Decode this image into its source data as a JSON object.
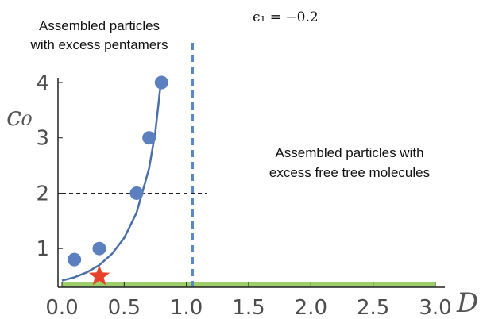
{
  "chart_data": {
    "type": "scatter",
    "title": "",
    "parameter_label": "ϵ₁ = −0.2",
    "xlabel": "D",
    "ylabel": "c₀",
    "xlim": [
      0.0,
      3.0
    ],
    "ylim": [
      0.3,
      4.0
    ],
    "x_ticks": [
      "0.0",
      "0.5",
      "1.0",
      "1.5",
      "2.0",
      "2.5",
      "3.0"
    ],
    "y_ticks": [
      "1",
      "2",
      "3",
      "4"
    ],
    "series": [
      {
        "color": "#5b7fbf",
        "points": [
          {
            "x": 0.1,
            "y": 0.8
          },
          {
            "x": 0.3,
            "y": 1.0
          },
          {
            "x": 0.6,
            "y": 2.0
          },
          {
            "x": 0.7,
            "y": 3.0
          },
          {
            "x": 0.8,
            "y": 4.0
          }
        ]
      }
    ],
    "fit_curve": {
      "color": "#4a6fa8",
      "points": [
        {
          "x": 0.0,
          "y": 0.42
        },
        {
          "x": 0.1,
          "y": 0.48
        },
        {
          "x": 0.2,
          "y": 0.57
        },
        {
          "x": 0.3,
          "y": 0.7
        },
        {
          "x": 0.4,
          "y": 0.9
        },
        {
          "x": 0.5,
          "y": 1.19
        },
        {
          "x": 0.6,
          "y": 1.65
        },
        {
          "x": 0.7,
          "y": 2.45
        },
        {
          "x": 0.75,
          "y": 3.1
        },
        {
          "x": 0.8,
          "y": 4.1
        }
      ]
    },
    "star_marker": {
      "x": 0.3,
      "y": 0.5,
      "color": "#e8432a"
    },
    "vertical_line": {
      "x": 1.05,
      "color": "#5b88c8",
      "style": "dashed"
    },
    "horizontal_line": {
      "y": 2.0,
      "x_end": 1.1,
      "color": "#222222",
      "style": "dashed"
    },
    "band": {
      "x_start": 0.0,
      "x_end": 3.0,
      "y_low": 0.3,
      "y_high": 0.42,
      "color": "#9ccf6a"
    },
    "annotations": [
      {
        "lines": [
          "Assembled particles",
          "with excess pentamers"
        ],
        "region": "top-left"
      },
      {
        "lines": [
          "Assembled particles with",
          "excess free tree molecules"
        ],
        "region": "right"
      }
    ],
    "grid": false,
    "legend": "none"
  }
}
